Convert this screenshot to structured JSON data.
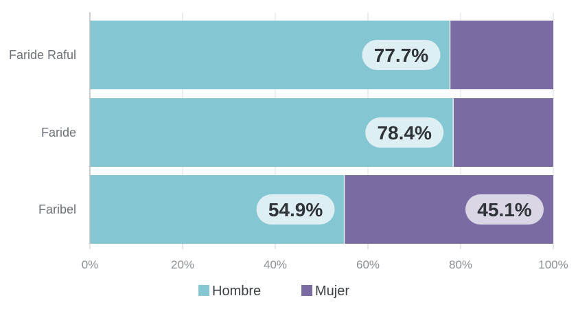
{
  "chart_data": {
    "type": "bar",
    "orientation": "horizontal",
    "stacked": "percent",
    "categories": [
      "Faride Raful",
      "Faride",
      "Faribel"
    ],
    "series": [
      {
        "name": "Hombre",
        "color": "#84c6d2",
        "values": [
          77.7,
          78.4,
          54.9
        ],
        "labels": [
          "77.7%",
          "78.4%",
          "54.9%"
        ]
      },
      {
        "name": "Mujer",
        "color": "#7a6ca3",
        "values": [
          22.3,
          21.6,
          45.1
        ],
        "labels": [
          "",
          "",
          "45.1%"
        ]
      }
    ],
    "xlim": [
      0,
      100
    ],
    "xticks": [
      "0%",
      "20%",
      "40%",
      "60%",
      "80%",
      "100%"
    ],
    "grid": true,
    "legend": "bottom-center"
  }
}
